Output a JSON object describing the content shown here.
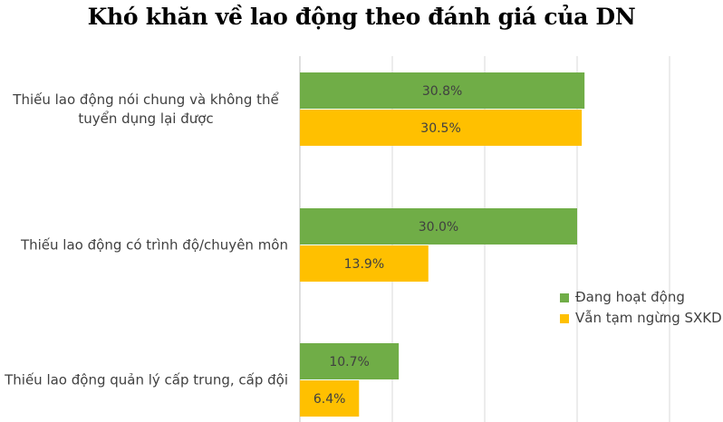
{
  "chart_data": {
    "type": "bar",
    "orientation": "horizontal",
    "title": "Khó khăn về lao động theo đánh giá của DN",
    "categories": [
      [
        "Thiếu lao động nói chung và không thể",
        "tuyển dụng lại được"
      ],
      [
        "Thiếu lao động có trình độ/chuyên môn"
      ],
      [
        "Thiếu lao động quản lý cấp trung, cấp đội"
      ]
    ],
    "series": [
      {
        "name": "Đang hoạt động",
        "color": "#70AD47",
        "values": [
          30.8,
          30.0,
          10.7
        ],
        "labels": [
          "30.8%",
          "30.0%",
          "10.7%"
        ]
      },
      {
        "name": "Vẫn tạm ngừng SXKD",
        "color": "#FFC000",
        "values": [
          30.5,
          13.9,
          6.4
        ],
        "labels": [
          "30.5%",
          "13.9%",
          "6.4%"
        ]
      }
    ],
    "xlim": [
      0,
      40
    ],
    "gridlines": [
      0,
      10,
      20,
      30,
      40
    ],
    "grid": true,
    "legend_position": "right"
  }
}
